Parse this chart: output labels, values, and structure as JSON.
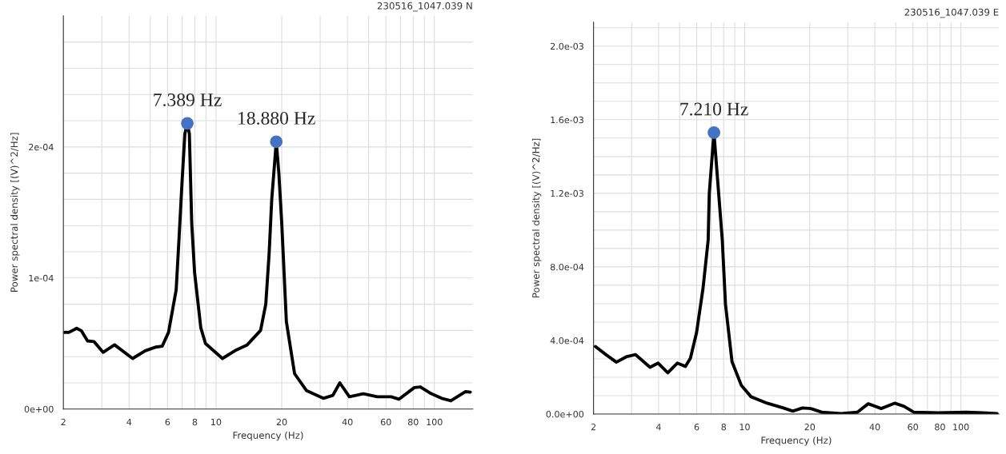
{
  "chart_data": [
    {
      "type": "line",
      "title": "230516_1047.039 N",
      "xlabel": "Frequency (Hz)",
      "ylabel": "Power spectral density [(V)^2/Hz]",
      "log": "x",
      "grid": true,
      "marker": "none",
      "line_style": "solid",
      "xlim": [
        2,
        150
      ],
      "xticks": [
        2,
        {
          "value": 3,
          "label": null
        },
        4,
        {
          "value": 5,
          "label": null
        },
        6,
        {
          "value": 7,
          "label": null
        },
        8,
        {
          "value": 9,
          "label": null
        },
        10,
        20,
        {
          "value": 30,
          "label": null
        },
        40,
        {
          "value": 50,
          "label": null
        },
        60,
        {
          "value": 70,
          "label": null
        },
        80,
        {
          "value": 90,
          "label": null
        },
        100
      ],
      "ylim": [
        0,
        0.0003
      ],
      "yticks": [
        {
          "value": 0,
          "label": "0e+00"
        },
        {
          "value": 2e-05,
          "label": null
        },
        {
          "value": 4e-05,
          "label": null
        },
        {
          "value": 6e-05,
          "label": null
        },
        {
          "value": 8e-05,
          "label": null
        },
        {
          "value": 0.0001,
          "label": "1e-04"
        },
        {
          "value": 0.00012,
          "label": null
        },
        {
          "value": 0.00014,
          "label": null
        },
        {
          "value": 0.00016,
          "label": null
        },
        {
          "value": 0.00018,
          "label": null
        },
        {
          "value": 0.0002,
          "label": "2e-04"
        },
        {
          "value": 0.00022,
          "label": null
        },
        {
          "value": 0.00024,
          "label": null
        },
        {
          "value": 0.00026,
          "label": null
        },
        {
          "value": 0.00028,
          "label": null
        }
      ],
      "series": [
        {
          "color": "#000000",
          "x": [
            2,
            2.12,
            2.3,
            2.42,
            2.58,
            2.76,
            3.04,
            3.43,
            4.15,
            4.74,
            5.31,
            5.67,
            6.06,
            6.57,
            6.77,
            7.0,
            7.2,
            7.389,
            7.55,
            7.74,
            7.98,
            8.52,
            8.95,
            10.7,
            12.2,
            13.9,
            16.0,
            16.9,
            17.5,
            18.0,
            18.88,
            19.4,
            20.0,
            21.0,
            22.9,
            26.0,
            31.0,
            34.3,
            36.9,
            40.8,
            47.3,
            54.8,
            63.4,
            68.8,
            81.0,
            86.3,
            96.8,
            108,
            119,
            139,
            146
          ],
          "values": [
            5.85e-05,
            5.85e-05,
            6.16e-05,
            5.97e-05,
            5.2e-05,
            5.15e-05,
            4.33e-05,
            4.9e-05,
            3.86e-05,
            4.45e-05,
            4.73e-05,
            4.8e-05,
            5.85e-05,
            9.1e-05,
            0.00013,
            0.000175,
            0.00021,
            0.000218,
            0.00021,
            0.000142,
            0.000104,
            6.2e-05,
            5e-05,
            3.86e-05,
            4.45e-05,
            4.9e-05,
            6e-05,
            8e-05,
            0.000118,
            0.00016,
            0.000204,
            0.00018,
            0.000142,
            6.67e-05,
            2.7e-05,
            1.4e-05,
            8.2e-06,
            1.05e-05,
            2e-05,
            9.4e-06,
            1.17e-05,
            9.4e-06,
            9.4e-06,
            7.5e-06,
            1.64e-05,
            1.69e-05,
            1.17e-05,
            8.2e-06,
            6.3e-06,
            1.33e-05,
            1.29e-05
          ]
        },
        {
          "type": "scatter",
          "color": "#4472c4",
          "marker": "circle",
          "x": [
            7.389,
            18.88
          ],
          "values": [
            0.000218,
            0.000204
          ]
        }
      ],
      "annotations": [
        {
          "text": "7.389 Hz",
          "x": 7.389,
          "y": 0.000218
        },
        {
          "text": "18.880 Hz",
          "x": 18.88,
          "y": 0.000204
        }
      ]
    },
    {
      "type": "line",
      "title": "230516_1047.039 E",
      "xlabel": "Frequency (Hz)",
      "ylabel": "Power spectral density [(V)^2/Hz]",
      "log": "x",
      "grid": true,
      "marker": "none",
      "line_style": "solid",
      "xlim": [
        2,
        150
      ],
      "xticks": [
        2,
        {
          "value": 3,
          "label": null
        },
        4,
        {
          "value": 5,
          "label": null
        },
        6,
        {
          "value": 7,
          "label": null
        },
        8,
        {
          "value": 9,
          "label": null
        },
        10,
        20,
        {
          "value": 30,
          "label": null
        },
        40,
        {
          "value": 50,
          "label": null
        },
        60,
        {
          "value": 70,
          "label": null
        },
        80,
        {
          "value": 90,
          "label": null
        },
        100
      ],
      "ylim": [
        0,
        0.00213
      ],
      "yticks": [
        {
          "value": 0,
          "label": "0.0e+00"
        },
        {
          "value": 0.0001,
          "label": null
        },
        {
          "value": 0.0002,
          "label": null
        },
        {
          "value": 0.0003,
          "label": null
        },
        {
          "value": 0.0004,
          "label": "4.0e-04"
        },
        {
          "value": 0.0005,
          "label": null
        },
        {
          "value": 0.0006,
          "label": null
        },
        {
          "value": 0.0007,
          "label": null
        },
        {
          "value": 0.0008,
          "label": "8.0e-04"
        },
        {
          "value": 0.0009,
          "label": null
        },
        {
          "value": 0.001,
          "label": null
        },
        {
          "value": 0.0011,
          "label": null
        },
        {
          "value": 0.0012,
          "label": "1.2e-03"
        },
        {
          "value": 0.0013,
          "label": null
        },
        {
          "value": 0.0014,
          "label": null
        },
        {
          "value": 0.0015,
          "label": null
        },
        {
          "value": 0.0016,
          "label": "1.6e-03"
        },
        {
          "value": 0.0017,
          "label": null
        },
        {
          "value": 0.0018,
          "label": null
        },
        {
          "value": 0.0019,
          "label": null
        },
        {
          "value": 0.002,
          "label": "2.0e-03"
        },
        {
          "value": 0.0021,
          "label": null
        }
      ],
      "series": [
        {
          "color": "#000000",
          "x": [
            2.04,
            2.3,
            2.55,
            2.83,
            3.13,
            3.65,
            3.98,
            4.41,
            4.88,
            5.32,
            5.61,
            5.99,
            6.42,
            6.78,
            6.86,
            7.21,
            7.58,
            7.88,
            8.15,
            8.74,
            9.66,
            10.7,
            12.7,
            15.1,
            16.7,
            18.5,
            20.2,
            22.7,
            27.9,
            33.2,
            37.3,
            42.8,
            49.4,
            54.6,
            60.5,
            78.6,
            106,
            126,
            147
          ],
          "values": [
            0.000367,
            0.00032,
            0.000282,
            0.000311,
            0.000323,
            0.000254,
            0.000277,
            0.000224,
            0.000277,
            0.000259,
            0.000303,
            0.000442,
            0.000685,
            0.000946,
            0.0012,
            0.00153,
            0.0012,
            0.000946,
            0.000598,
            0.000285,
            0.000155,
            9.4e-05,
            5.9e-05,
            3.3e-05,
            1.6e-05,
            3.3e-05,
            3e-05,
            1e-05,
            3e-06,
            1e-05,
            5.6e-05,
            3e-05,
            5.9e-05,
            4.2e-05,
            1e-05,
            7e-06,
            1e-05,
            7e-06,
            3e-06
          ]
        },
        {
          "type": "scatter",
          "color": "#4472c4",
          "marker": "circle",
          "x": [
            7.21
          ],
          "values": [
            0.00153
          ]
        }
      ],
      "annotations": [
        {
          "text": "7.210 Hz",
          "x": 7.21,
          "y": 0.00153
        }
      ]
    }
  ]
}
